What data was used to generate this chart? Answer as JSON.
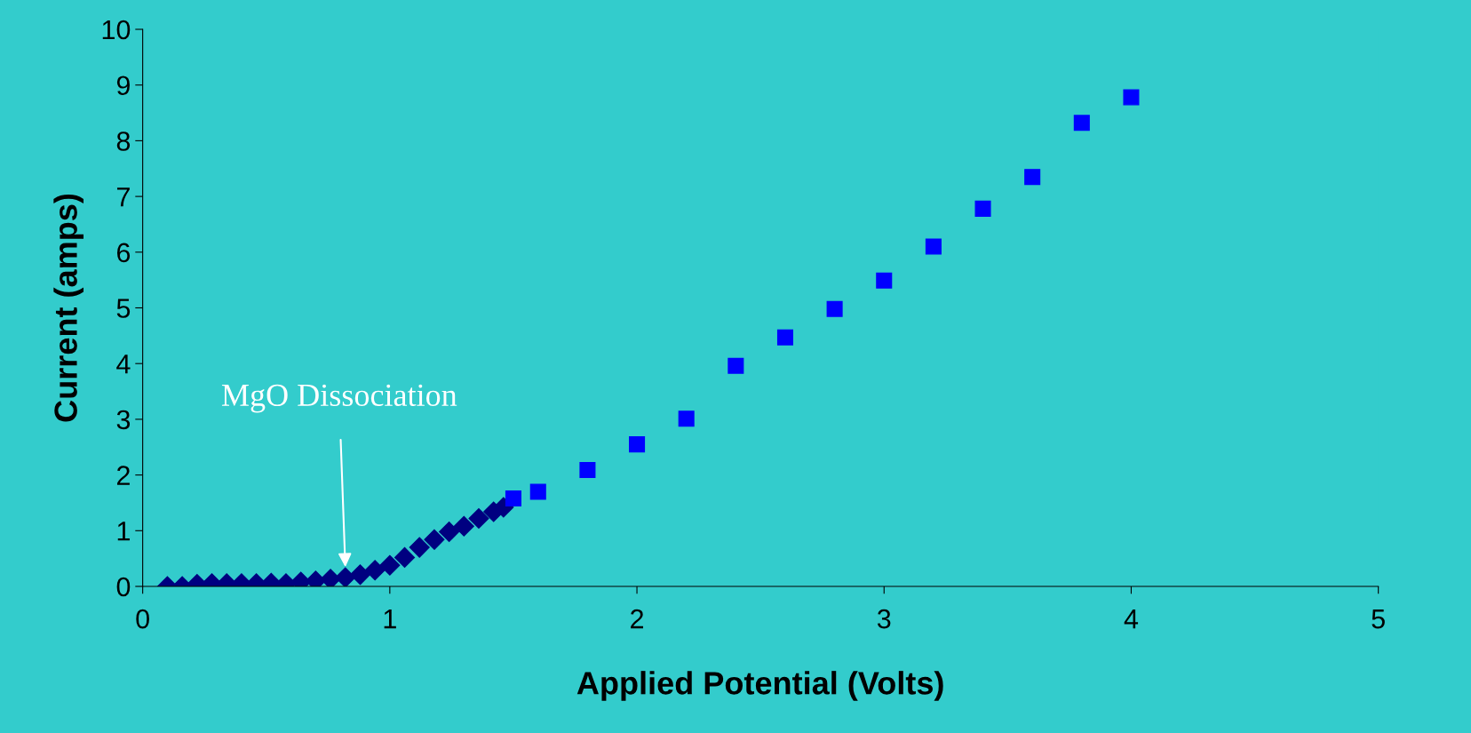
{
  "chart_data": {
    "type": "scatter",
    "xlabel": "Applied Potential (Volts)",
    "ylabel": "Current (amps)",
    "xlim": [
      0,
      5
    ],
    "xticks": [
      0,
      1,
      2,
      3,
      4,
      5
    ],
    "ylim": [
      0,
      10
    ],
    "yticks": [
      0,
      1,
      2,
      3,
      4,
      5,
      6,
      7,
      8,
      9,
      10
    ],
    "grid": false,
    "annotations": [
      {
        "text": "MgO Dissociation",
        "x": 0.82,
        "y": 0.35
      }
    ],
    "series": [
      {
        "color": "#000080",
        "marker": "diamond",
        "x": [
          0.1,
          0.16,
          0.22,
          0.28,
          0.34,
          0.4,
          0.46,
          0.52,
          0.58,
          0.64,
          0.7,
          0.76,
          0.82,
          0.88,
          0.94,
          1.0,
          1.06,
          1.12,
          1.18,
          1.24,
          1.3,
          1.36,
          1.42,
          1.46
        ],
        "values": [
          0.0,
          0.0,
          0.04,
          0.05,
          0.05,
          0.05,
          0.05,
          0.06,
          0.05,
          0.08,
          0.1,
          0.13,
          0.16,
          0.21,
          0.29,
          0.38,
          0.52,
          0.7,
          0.84,
          0.98,
          1.08,
          1.22,
          1.34,
          1.42
        ]
      },
      {
        "color": "#0000ff",
        "marker": "square",
        "x": [
          1.5,
          1.6,
          1.8,
          2.0,
          2.2,
          2.4,
          2.6,
          2.8,
          3.0,
          3.2,
          3.4,
          3.6,
          3.8,
          4.0
        ],
        "values": [
          1.58,
          1.7,
          2.09,
          2.55,
          3.01,
          3.96,
          4.47,
          4.98,
          5.49,
          6.1,
          6.78,
          7.35,
          8.32,
          8.78
        ]
      }
    ]
  }
}
